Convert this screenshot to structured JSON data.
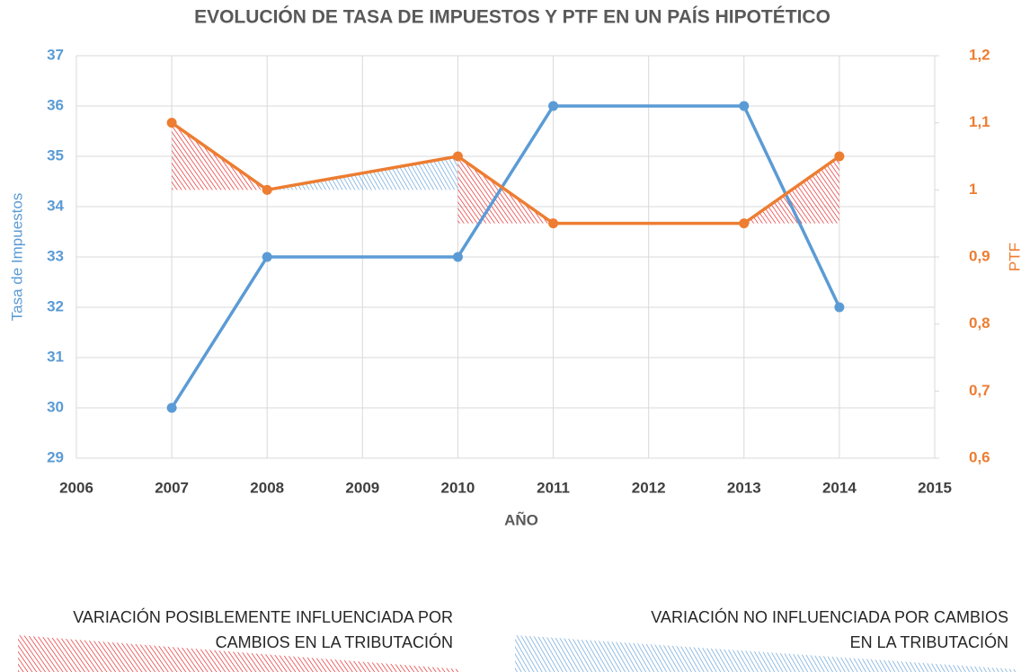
{
  "chart_data": {
    "type": "line",
    "title": "EVOLUCIÓN  DE TASA DE IMPUESTOS Y PTF EN UN PAÍS HIPOTÉTICO",
    "x_label": "AÑO",
    "y_label": "Tasa de Impuestos",
    "y2_label": "PTF",
    "x": [
      2007,
      2008,
      2010,
      2011,
      2013,
      2014
    ],
    "series": [
      {
        "name": "Tasa de Impuestos",
        "color": "#5b9bd5",
        "values": [
          30,
          33,
          33,
          36,
          36,
          32
        ]
      },
      {
        "name": "PTF",
        "color": "#ed7d31",
        "axis": "y2",
        "values": [
          1.1,
          1,
          1.05,
          0.95,
          0.95,
          1.05
        ]
      }
    ],
    "xlim": [
      2006,
      2015
    ],
    "xticks": [
      2006,
      2007,
      2008,
      2009,
      2010,
      2011,
      2012,
      2013,
      2014,
      2015
    ],
    "ylim": [
      29,
      37
    ],
    "yticks": [
      29,
      30,
      31,
      32,
      33,
      34,
      35,
      36,
      37
    ],
    "y2lim": [
      0.6,
      1.2
    ],
    "y2ticks": [
      {
        "value": 0.6,
        "label": "0,6"
      },
      {
        "value": 0.7,
        "label": "0,7"
      },
      {
        "value": 0.8,
        "label": "0,8"
      },
      {
        "value": 0.9,
        "label": "0,9"
      },
      1,
      {
        "value": 1.1,
        "label": "1,1"
      },
      {
        "value": 1.2,
        "label": "1,2"
      }
    ],
    "grid": true,
    "highlights": [
      {
        "label_lines": [
          "VARIACIÓN POSIBLEMENTE INFLUENCIADA POR",
          "CAMBIOS EN LA TRIBUTACIÓN"
        ],
        "color": "#e31a1c",
        "x_ranges": [
          [
            2007,
            2008
          ],
          [
            2010,
            2011
          ],
          [
            2013,
            2014
          ]
        ]
      },
      {
        "label_lines": [
          "VARIACIÓN NO INFLUENCIADA POR CAMBIOS",
          "EN LA TRIBUTACIÓN"
        ],
        "color": "#5b9bd5",
        "x_ranges": [
          [
            2008,
            2010
          ]
        ]
      }
    ]
  }
}
